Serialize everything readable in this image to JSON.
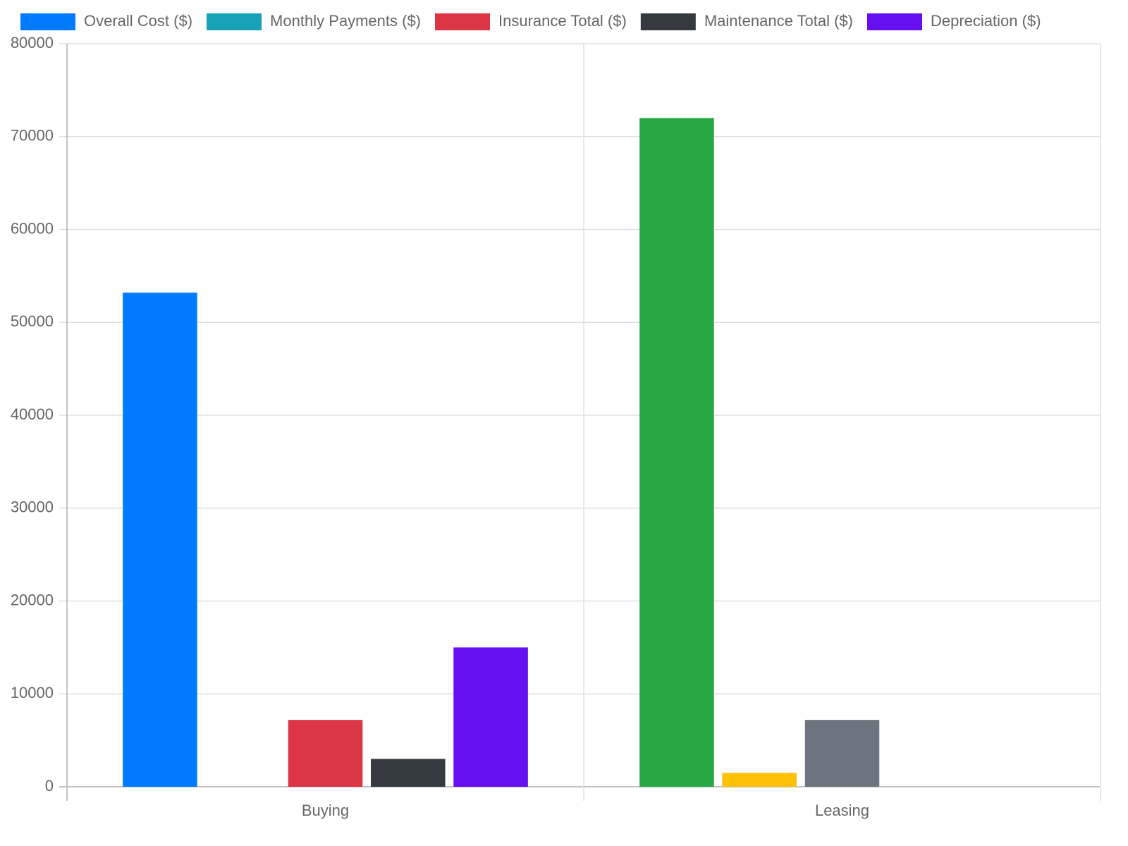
{
  "chart_data": {
    "type": "bar",
    "categories": [
      "Buying",
      "Leasing"
    ],
    "series": [
      {
        "name": "Overall Cost ($)",
        "color": "#007bff",
        "point_colors": [
          "#007bff",
          "#28a745"
        ],
        "values": [
          53200,
          72000
        ]
      },
      {
        "name": "Monthly Payments ($)",
        "color": "#17a2b8",
        "point_colors": [
          "#17a2b8",
          "#ffc107"
        ],
        "values": [
          0,
          1500
        ]
      },
      {
        "name": "Insurance Total ($)",
        "color": "#dc3545",
        "point_colors": [
          "#dc3545",
          "#6c757d"
        ],
        "values": [
          7200,
          7200
        ]
      },
      {
        "name": "Maintenance Total ($)",
        "color": "#343a40",
        "values": [
          3000,
          0
        ]
      },
      {
        "name": "Depreciation ($)",
        "color": "#6610f2",
        "values": [
          15000,
          0
        ]
      }
    ],
    "ylim": [
      0,
      80000
    ],
    "yticks": [
      0,
      10000,
      20000,
      30000,
      40000,
      50000,
      60000,
      70000,
      80000
    ],
    "grid": true,
    "legend": "top"
  }
}
